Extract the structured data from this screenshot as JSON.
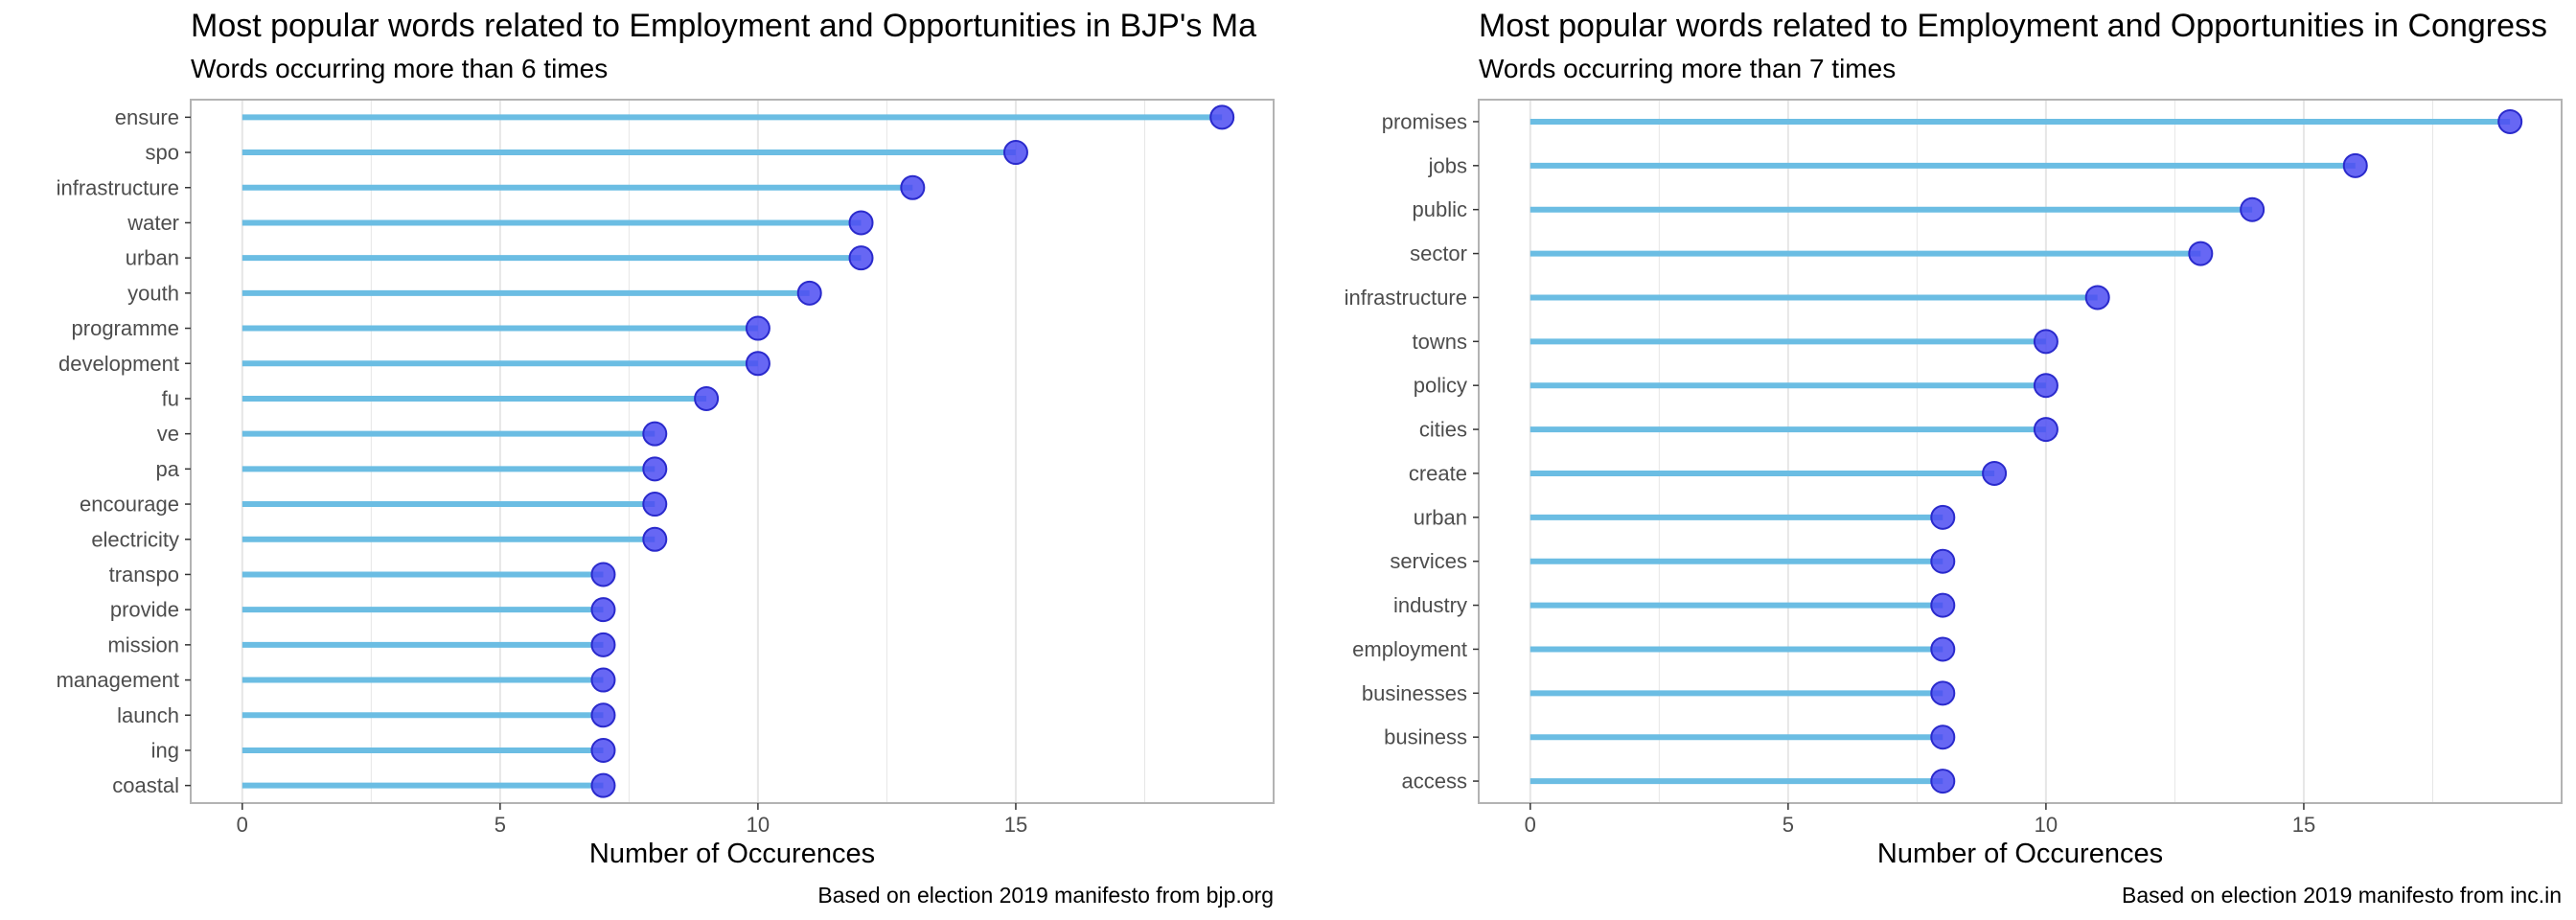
{
  "colors": {
    "segment": "#6BBDE3",
    "point_fill": "#4C4CF2",
    "point_stroke": "#2A2ACC",
    "grid": "#E6E6E6",
    "panel_border": "#B3B3B3",
    "tick_text": "#4D4D4D"
  },
  "chart_data": [
    {
      "type": "lollipop",
      "title": "Most popular words related to Employment and Opportunities in BJP's Ma",
      "subtitle": "Words occurring more than 6 times",
      "xlabel": "Number of Occurences",
      "ylabel": "",
      "caption": "Based on election 2019 manifesto from bjp.org",
      "xlim": [
        -1,
        20
      ],
      "xticks": [
        0,
        5,
        10,
        15
      ],
      "grid": true,
      "categories": [
        "ensure",
        "spo",
        "infrastructure",
        "water",
        "urban",
        "youth",
        "programme",
        "development",
        "fu",
        "ve",
        "pa",
        "encourage",
        "electricity",
        "transpo",
        "provide",
        "mission",
        "management",
        "launch",
        "ing",
        "coastal"
      ],
      "values": [
        19,
        15,
        13,
        12,
        12,
        11,
        10,
        10,
        9,
        8,
        8,
        8,
        8,
        7,
        7,
        7,
        7,
        7,
        7,
        7
      ]
    },
    {
      "type": "lollipop",
      "title": "Most popular words related to Employment and Opportunities in Congress",
      "subtitle": "Words occurring more than 7 times",
      "xlabel": "Number of Occurences",
      "ylabel": "",
      "caption": "Based on election 2019 manifesto from inc.in",
      "xlim": [
        -1,
        20
      ],
      "xticks": [
        0,
        5,
        10,
        15
      ],
      "grid": true,
      "categories": [
        "promises",
        "jobs",
        "public",
        "sector",
        "infrastructure",
        "towns",
        "policy",
        "cities",
        "create",
        "urban",
        "services",
        "industry",
        "employment",
        "businesses",
        "business",
        "access"
      ],
      "values": [
        19,
        16,
        14,
        13,
        11,
        10,
        10,
        10,
        9,
        8,
        8,
        8,
        8,
        8,
        8,
        8
      ]
    }
  ]
}
